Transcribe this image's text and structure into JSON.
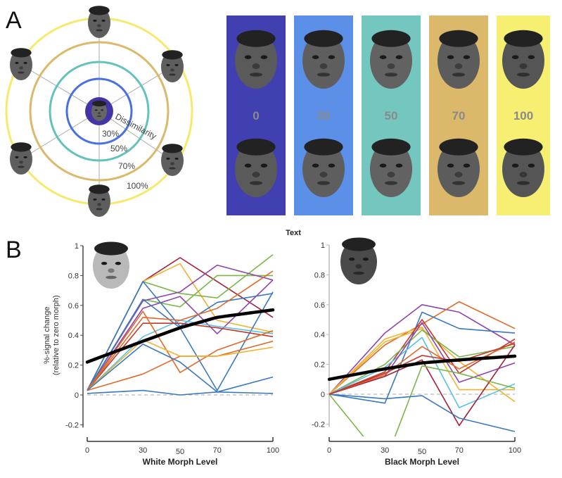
{
  "panel_labels": {
    "a": "A",
    "b": "B"
  },
  "panel_a": {
    "dissimilarity_label": "Dissimilarity",
    "ring_labels": [
      "30%",
      "50%",
      "70%",
      "100%"
    ],
    "ring_colors": [
      "#4a6fe0",
      "#63c2bb",
      "#dcb86a",
      "#f5ea6a"
    ],
    "center_color": "#4335a8",
    "morph_levels": [
      "0",
      "30",
      "50",
      "70",
      "100"
    ],
    "morph_colors": [
      "#4040b0",
      "#5b8fe8",
      "#74c7bf",
      "#dcb86a",
      "#f7ef72"
    ]
  },
  "center_text": "Text",
  "chart_data": [
    {
      "type": "line",
      "xlabel": "White Morph Level",
      "ylabel": "%-signal change",
      "ylabel2": "(relative to zero morph)",
      "x": [
        0,
        30,
        50,
        70,
        100
      ],
      "xticks": [
        "0",
        "30",
        "50",
        "70",
        "100"
      ],
      "yticks": [
        "-0.2",
        "0",
        "0.2",
        "0.4",
        "0.6",
        "0.8",
        "1"
      ],
      "xlim": [
        0,
        100
      ],
      "ylim": [
        -0.2,
        1
      ],
      "reference_line": 0,
      "series": [
        {
          "color": "#a3213a",
          "values": [
            0.03,
            0.76,
            0.92,
            0.76,
            0.52
          ]
        },
        {
          "color": "#f0b232",
          "values": [
            0.03,
            0.76,
            0.88,
            0.5,
            0.42
          ]
        },
        {
          "color": "#7ab648",
          "values": [
            0.03,
            0.76,
            0.68,
            0.65,
            0.94
          ]
        },
        {
          "color": "#7ab648",
          "values": [
            0.03,
            0.64,
            0.59,
            0.8,
            0.8
          ]
        },
        {
          "color": "#8e44ad",
          "values": [
            0.03,
            0.63,
            0.69,
            0.87,
            0.77
          ]
        },
        {
          "color": "#8e44ad",
          "values": [
            0.03,
            0.58,
            0.66,
            0.41,
            0.77
          ]
        },
        {
          "color": "#3a78c0",
          "values": [
            0.03,
            0.76,
            0.46,
            0.62,
            0.68
          ]
        },
        {
          "color": "#3a78c0",
          "values": [
            0.03,
            0.64,
            0.45,
            0.03,
            0.69
          ]
        },
        {
          "color": "#5bc0e8",
          "values": [
            0.03,
            0.39,
            0.5,
            0.46,
            0.41
          ]
        },
        {
          "color": "#c0392b",
          "values": [
            0.03,
            0.48,
            0.48,
            0.45,
            0.39
          ]
        },
        {
          "color": "#e06a2a",
          "values": [
            0.03,
            0.56,
            0.15,
            0.3,
            0.43
          ]
        },
        {
          "color": "#e06a2a",
          "values": [
            0.03,
            0.52,
            0.5,
            0.58,
            0.83
          ]
        },
        {
          "color": "#e06a2a",
          "values": [
            0.03,
            0.14,
            0.26,
            0.26,
            0.36
          ]
        },
        {
          "color": "#f0b232",
          "values": [
            0.03,
            0.37,
            0.26,
            0.26,
            0.32
          ]
        },
        {
          "color": "#3a78c0",
          "values": [
            0.03,
            0.34,
            0.22,
            0.02,
            0.12
          ]
        },
        {
          "color": "#3a78c0",
          "values": [
            0.01,
            0.03,
            0.0,
            0.02,
            0.01
          ]
        }
      ],
      "mean_fit": {
        "color": "#000000",
        "values": [
          0.22,
          0.36,
          0.45,
          0.52,
          0.57
        ]
      }
    },
    {
      "type": "line",
      "xlabel": "Black Morph Level",
      "x": [
        0,
        30,
        50,
        70,
        100
      ],
      "xticks": [
        "0",
        "30",
        "50",
        "70",
        "100"
      ],
      "yticks": [
        "-0.2",
        "0",
        "0.2",
        "0.4",
        "0.6",
        "0.8",
        "1"
      ],
      "xlim": [
        0,
        100
      ],
      "ylim": [
        -0.3,
        1
      ],
      "reference_line": 0,
      "series": [
        {
          "color": "#8e44ad",
          "values": [
            0,
            0.41,
            0.6,
            0.55,
            0.33
          ]
        },
        {
          "color": "#e06a2a",
          "values": [
            0,
            0.33,
            0.47,
            0.62,
            0.44
          ]
        },
        {
          "color": "#3a78c0",
          "values": [
            0,
            -0.06,
            0.55,
            0.44,
            0.41
          ]
        },
        {
          "color": "#f0b232",
          "values": [
            0,
            0.37,
            0.45,
            0.03,
            0.03
          ]
        },
        {
          "color": "#f0b232",
          "values": [
            0,
            0.35,
            0.44,
            0.22,
            -0.05
          ]
        },
        {
          "color": "#c0392b",
          "values": [
            0,
            0.15,
            0.5,
            0.14,
            0.37
          ]
        },
        {
          "color": "#7ab648",
          "values": [
            0,
            0.2,
            0.43,
            0.25,
            0.32
          ]
        },
        {
          "color": "#5bc0e8",
          "values": [
            0,
            0.18,
            0.38,
            -0.09,
            0.07
          ]
        },
        {
          "color": "#8e44ad",
          "values": [
            0,
            0.12,
            0.48,
            0.08,
            0.21
          ]
        },
        {
          "color": "#a3213a",
          "values": [
            0,
            0.12,
            0.23,
            -0.21,
            0.33
          ]
        },
        {
          "color": "#7ab648",
          "values": [
            0,
            -0.46,
            0.19,
            0.14,
            0.04
          ]
        },
        {
          "color": "#3a78c0",
          "values": [
            0,
            -0.03,
            -0.01,
            -0.16,
            -0.25
          ]
        },
        {
          "color": "#e06a2a",
          "values": [
            0,
            0.13,
            0.32,
            0.17,
            0.35
          ]
        },
        {
          "color": "#c0392b",
          "values": [
            0,
            0.14,
            0.26,
            0.22,
            0.34
          ]
        }
      ],
      "mean_fit": {
        "color": "#000000",
        "values": [
          0.1,
          0.17,
          0.21,
          0.23,
          0.255
        ]
      }
    }
  ]
}
